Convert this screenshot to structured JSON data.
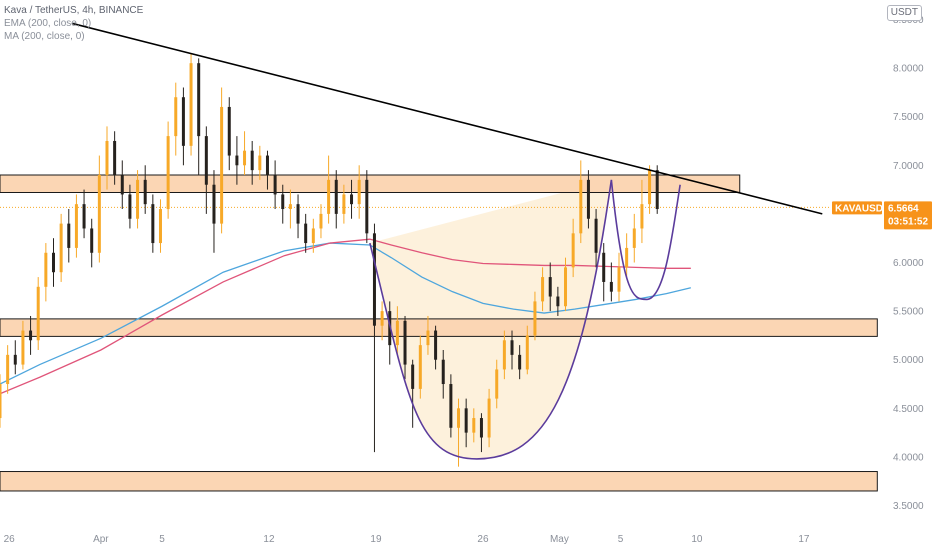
{
  "legend": {
    "symbol_line": "Kava / TetherUS, 4h, BINANCE",
    "ema_line": "EMA (200, close, 0)",
    "ma_line": "MA (200, close, 0)"
  },
  "currency_button": "USDT",
  "price_badge": {
    "symbol": "KAVAUSDT",
    "price": "6.5664",
    "countdown": "03:51:52",
    "color": "#f7931a"
  },
  "colors": {
    "up_candle": "#f7a928",
    "down_candle": "#26221e",
    "ema": "#4ea6dd",
    "ma": "#e0557a",
    "cup": "#5b3c9c",
    "zone_fill": "#fbd6b4",
    "zone_border": "#1a1a1a",
    "trendline": "#000000",
    "cup_fill": "#fdf0d8"
  },
  "chart_data": {
    "type": "candlestick",
    "title": "Kava / TetherUS, 4h, BINANCE",
    "y_ticks": [
      "3.5000",
      "4.0000",
      "4.5000",
      "5.0000",
      "5.5000",
      "6.0000",
      "6.5000",
      "7.0000",
      "7.5000",
      "8.0000",
      "8.5000"
    ],
    "ylim": [
      3.3,
      8.7
    ],
    "x_ticks": [
      {
        "label": "26",
        "day": -6
      },
      {
        "label": "Apr",
        "day": 0
      },
      {
        "label": "5",
        "day": 4
      },
      {
        "label": "12",
        "day": 11
      },
      {
        "label": "19",
        "day": 18
      },
      {
        "label": "26",
        "day": 25
      },
      {
        "label": "May",
        "day": 30
      },
      {
        "label": "5",
        "day": 34
      },
      {
        "label": "10",
        "day": 39
      },
      {
        "label": "17",
        "day": 46
      }
    ],
    "xlim": [
      -6.6,
      51.5
    ],
    "current_price": 6.5664,
    "resistance_zones": [
      {
        "low": 6.72,
        "high": 6.9,
        "from_day": -6.6,
        "to_day": 41.8
      },
      {
        "low": 5.24,
        "high": 5.42,
        "from_day": -6.6,
        "to_day": 50.8
      },
      {
        "low": 3.65,
        "high": 3.85,
        "from_day": -6.6,
        "to_day": 50.8
      }
    ],
    "trendline": [
      {
        "day": -1.9,
        "price": 8.46
      },
      {
        "day": 47.2,
        "price": 6.5
      }
    ],
    "cup_and_handle": {
      "left_rim": {
        "day": 17.6,
        "price": 6.2
      },
      "bottom": {
        "day": 24.6,
        "price": 3.98
      },
      "right_rim": {
        "day": 33.4,
        "price": 6.85
      },
      "handle_low": {
        "day": 35.7,
        "price": 5.62
      },
      "handle_end": {
        "day": 37.9,
        "price": 6.8
      }
    },
    "ema_200": [
      [
        -6.6,
        4.75
      ],
      [
        -4,
        4.95
      ],
      [
        0,
        5.22
      ],
      [
        4,
        5.55
      ],
      [
        8,
        5.9
      ],
      [
        12,
        6.12
      ],
      [
        15,
        6.2
      ],
      [
        17.6,
        6.18
      ],
      [
        19,
        6.05
      ],
      [
        21,
        5.85
      ],
      [
        23,
        5.7
      ],
      [
        25,
        5.58
      ],
      [
        27,
        5.52
      ],
      [
        29,
        5.48
      ],
      [
        31,
        5.52
      ],
      [
        33,
        5.57
      ],
      [
        35,
        5.62
      ],
      [
        37,
        5.68
      ],
      [
        38.6,
        5.74
      ]
    ],
    "ma_200": [
      [
        -6.6,
        4.65
      ],
      [
        -4,
        4.82
      ],
      [
        0,
        5.1
      ],
      [
        4,
        5.46
      ],
      [
        8,
        5.8
      ],
      [
        12,
        6.07
      ],
      [
        15,
        6.2
      ],
      [
        17.6,
        6.24
      ],
      [
        19,
        6.18
      ],
      [
        21,
        6.1
      ],
      [
        23,
        6.03
      ],
      [
        25,
        5.99
      ],
      [
        27,
        5.98
      ],
      [
        29,
        5.97
      ],
      [
        31,
        5.97
      ],
      [
        33,
        5.96
      ],
      [
        35,
        5.95
      ],
      [
        37,
        5.94
      ],
      [
        38.6,
        5.94
      ]
    ],
    "candles": [
      [
        -6.6,
        4.4,
        4.75,
        4.3,
        4.85
      ],
      [
        -6.1,
        4.75,
        5.05,
        4.65,
        5.15
      ],
      [
        -5.6,
        5.05,
        4.95,
        4.85,
        5.2
      ],
      [
        -5.1,
        4.95,
        5.3,
        4.9,
        5.4
      ],
      [
        -4.6,
        5.3,
        5.2,
        5.05,
        5.45
      ],
      [
        -4.1,
        5.2,
        5.75,
        5.1,
        5.85
      ],
      [
        -3.6,
        5.75,
        6.1,
        5.6,
        6.2
      ],
      [
        -3.1,
        6.1,
        5.9,
        5.75,
        6.25
      ],
      [
        -2.6,
        5.9,
        6.4,
        5.8,
        6.5
      ],
      [
        -2.1,
        6.4,
        6.15,
        6.0,
        6.55
      ],
      [
        -1.6,
        6.15,
        6.6,
        6.05,
        6.7
      ],
      [
        -1.1,
        6.6,
        6.35,
        6.25,
        6.75
      ],
      [
        -0.6,
        6.35,
        6.1,
        5.95,
        6.45
      ],
      [
        -0.1,
        6.1,
        6.9,
        6.0,
        7.1
      ],
      [
        0.4,
        6.9,
        7.25,
        6.75,
        7.4
      ],
      [
        0.9,
        7.25,
        6.9,
        6.8,
        7.35
      ],
      [
        1.4,
        6.9,
        6.7,
        6.55,
        7.05
      ],
      [
        1.9,
        6.7,
        6.45,
        6.35,
        6.8
      ],
      [
        2.4,
        6.45,
        6.85,
        6.35,
        6.95
      ],
      [
        2.9,
        6.85,
        6.6,
        6.5,
        7.0
      ],
      [
        3.4,
        6.6,
        6.2,
        6.1,
        6.7
      ],
      [
        3.9,
        6.2,
        6.55,
        6.1,
        6.65
      ],
      [
        4.4,
        6.55,
        7.3,
        6.45,
        7.45
      ],
      [
        4.9,
        7.3,
        7.7,
        7.1,
        7.85
      ],
      [
        5.4,
        7.7,
        7.2,
        7.0,
        7.8
      ],
      [
        5.9,
        7.2,
        8.05,
        7.1,
        8.15
      ],
      [
        6.4,
        8.05,
        7.3,
        6.9,
        8.1
      ],
      [
        6.9,
        7.3,
        6.8,
        6.5,
        7.4
      ],
      [
        7.4,
        6.8,
        6.4,
        6.1,
        6.95
      ],
      [
        7.9,
        6.4,
        7.6,
        6.3,
        7.8
      ],
      [
        8.4,
        7.6,
        7.1,
        6.95,
        7.7
      ],
      [
        8.9,
        7.1,
        7.0,
        6.8,
        7.3
      ],
      [
        9.4,
        7.0,
        7.15,
        6.9,
        7.35
      ],
      [
        9.9,
        7.15,
        6.95,
        6.8,
        7.25
      ],
      [
        10.4,
        6.95,
        7.1,
        6.85,
        7.2
      ],
      [
        10.9,
        7.1,
        6.9,
        6.75,
        7.15
      ],
      [
        11.4,
        6.9,
        6.7,
        6.55,
        7.05
      ],
      [
        11.9,
        6.7,
        6.55,
        6.4,
        6.8
      ],
      [
        12.4,
        6.55,
        6.6,
        6.35,
        6.75
      ],
      [
        12.9,
        6.6,
        6.4,
        6.25,
        6.7
      ],
      [
        13.4,
        6.4,
        6.2,
        6.1,
        6.5
      ],
      [
        13.9,
        6.2,
        6.35,
        6.1,
        6.45
      ],
      [
        14.4,
        6.35,
        6.5,
        6.25,
        6.6
      ],
      [
        14.9,
        6.5,
        6.85,
        6.4,
        7.1
      ],
      [
        15.4,
        6.85,
        6.5,
        6.35,
        6.95
      ],
      [
        15.9,
        6.5,
        6.7,
        6.4,
        6.8
      ],
      [
        16.4,
        6.7,
        6.6,
        6.45,
        6.85
      ],
      [
        16.9,
        6.6,
        6.85,
        6.45,
        7.0
      ],
      [
        17.4,
        6.85,
        6.3,
        6.2,
        6.95
      ],
      [
        17.9,
        6.3,
        5.35,
        4.05,
        6.4
      ],
      [
        18.4,
        5.35,
        5.5,
        5.2,
        5.6
      ],
      [
        18.9,
        5.5,
        5.15,
        4.95,
        5.6
      ],
      [
        19.4,
        5.15,
        5.4,
        5.05,
        5.55
      ],
      [
        19.9,
        5.4,
        4.95,
        4.8,
        5.45
      ],
      [
        20.4,
        4.95,
        4.7,
        4.3,
        5.0
      ],
      [
        20.9,
        4.7,
        5.15,
        4.6,
        5.25
      ],
      [
        21.4,
        5.15,
        5.3,
        5.05,
        5.45
      ],
      [
        21.9,
        5.3,
        5.0,
        4.9,
        5.35
      ],
      [
        22.4,
        5.0,
        4.75,
        4.6,
        5.1
      ],
      [
        22.9,
        4.75,
        4.3,
        4.2,
        4.85
      ],
      [
        23.4,
        4.3,
        4.5,
        3.9,
        4.6
      ],
      [
        23.9,
        4.5,
        4.25,
        4.1,
        4.6
      ],
      [
        24.4,
        4.25,
        4.4,
        4.15,
        4.5
      ],
      [
        24.9,
        4.4,
        4.2,
        4.05,
        4.45
      ],
      [
        25.4,
        4.2,
        4.6,
        4.1,
        4.7
      ],
      [
        25.9,
        4.6,
        4.9,
        4.5,
        5.0
      ],
      [
        26.4,
        4.9,
        5.2,
        4.8,
        5.3
      ],
      [
        26.9,
        5.2,
        5.05,
        4.9,
        5.3
      ],
      [
        27.4,
        5.05,
        4.9,
        4.8,
        5.15
      ],
      [
        27.9,
        4.9,
        5.25,
        4.85,
        5.35
      ],
      [
        28.4,
        5.25,
        5.6,
        5.2,
        5.7
      ],
      [
        28.9,
        5.6,
        5.85,
        5.5,
        5.95
      ],
      [
        29.4,
        5.85,
        5.65,
        5.5,
        6.0
      ],
      [
        29.9,
        5.65,
        5.55,
        5.45,
        5.75
      ],
      [
        30.4,
        5.55,
        5.95,
        5.5,
        6.05
      ],
      [
        30.9,
        5.95,
        6.3,
        5.85,
        6.45
      ],
      [
        31.4,
        6.3,
        6.85,
        6.2,
        7.05
      ],
      [
        31.9,
        6.85,
        6.45,
        6.35,
        6.95
      ],
      [
        32.4,
        6.45,
        6.1,
        5.95,
        6.55
      ],
      [
        32.9,
        6.1,
        5.8,
        5.6,
        6.2
      ],
      [
        33.4,
        5.8,
        5.7,
        5.6,
        6.0
      ],
      [
        33.9,
        5.7,
        5.95,
        5.6,
        6.1
      ],
      [
        34.4,
        5.95,
        6.15,
        5.85,
        6.3
      ],
      [
        34.9,
        6.15,
        6.35,
        6.0,
        6.5
      ],
      [
        35.4,
        6.35,
        6.6,
        6.2,
        6.85
      ],
      [
        35.9,
        6.6,
        6.95,
        6.5,
        7.0
      ],
      [
        36.4,
        6.95,
        6.55,
        6.5,
        7.0
      ]
    ]
  }
}
